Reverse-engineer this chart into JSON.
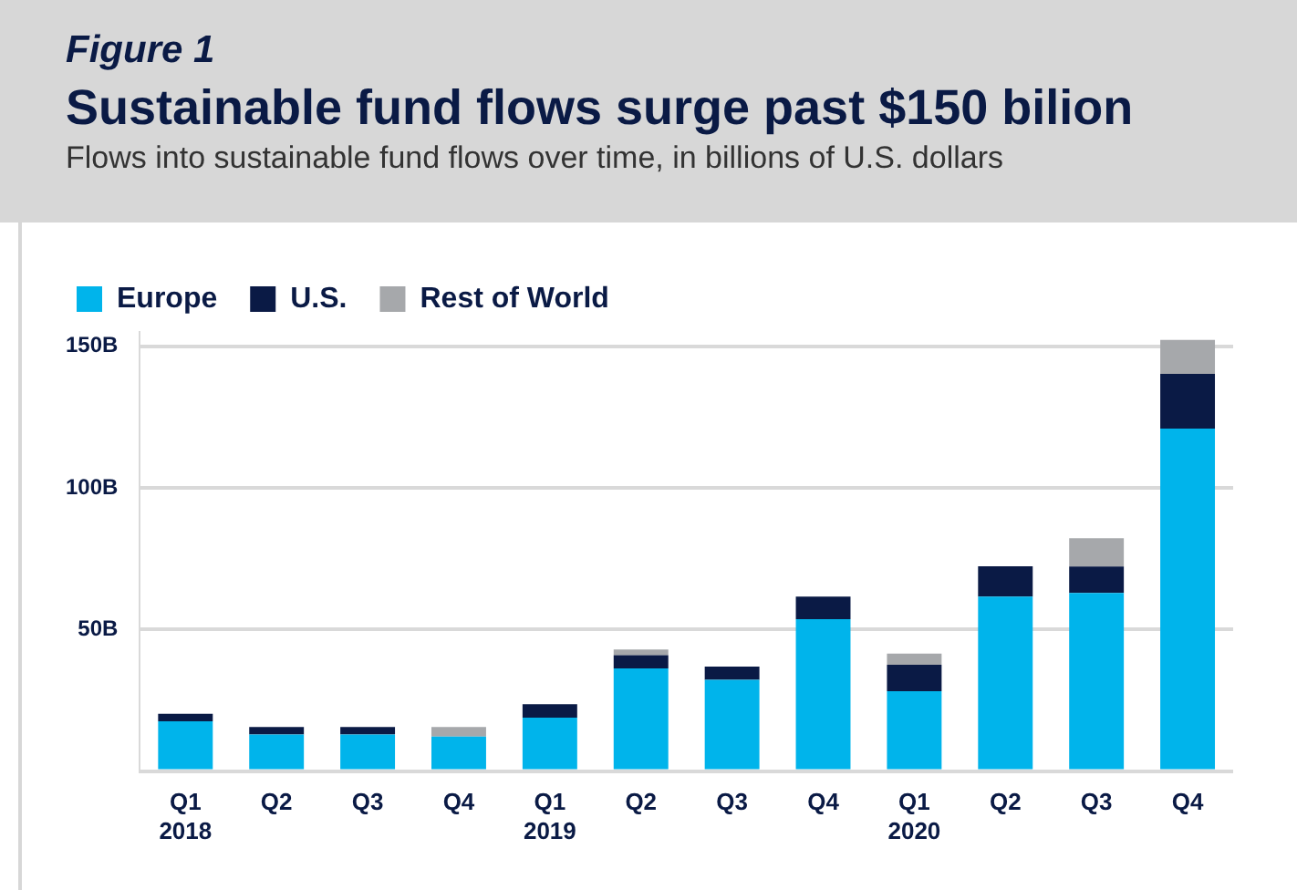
{
  "chart_data": {
    "type": "bar",
    "stacked": true,
    "annotations": [
      "Figure 1"
    ],
    "title": "Sustainable fund flows surge past $150 bilion",
    "subtitle": "Flows into sustainable fund flows over time, in billions of U.S. dollars",
    "categories": [
      "Q1\n2018",
      "Q2",
      "Q3",
      "Q4",
      "Q1\n2019",
      "Q2",
      "Q3",
      "Q4",
      "Q1\n2020",
      "Q2",
      "Q3",
      "Q4"
    ],
    "series": [
      {
        "name": "Europe",
        "color": "#00b4eb",
        "values": [
          17.6,
          12.9,
          12.9,
          12.2,
          18.9,
          36.2,
          32.2,
          53.6,
          28.2,
          61.6,
          62.9,
          120.9
        ]
      },
      {
        "name": "U.S.",
        "color": "#0a1a45",
        "values": [
          2.6,
          2.7,
          2.7,
          0,
          4.7,
          4.7,
          4.7,
          8.0,
          9.3,
          10.7,
          9.3,
          19.3
        ]
      },
      {
        "name": "Rest of World",
        "color": "#a6a8ab",
        "values": [
          0,
          0,
          0,
          3.4,
          0,
          2.0,
          0,
          0,
          4.0,
          0,
          10,
          12
        ]
      }
    ],
    "ylim": [
      0,
      155
    ],
    "yticks": [
      {
        "value": 0,
        "label": null
      },
      {
        "value": 50,
        "label": "50B"
      },
      {
        "value": 100,
        "label": "100B"
      },
      {
        "value": 150,
        "label": "150B"
      }
    ],
    "grid": "y",
    "legend": "top left"
  }
}
